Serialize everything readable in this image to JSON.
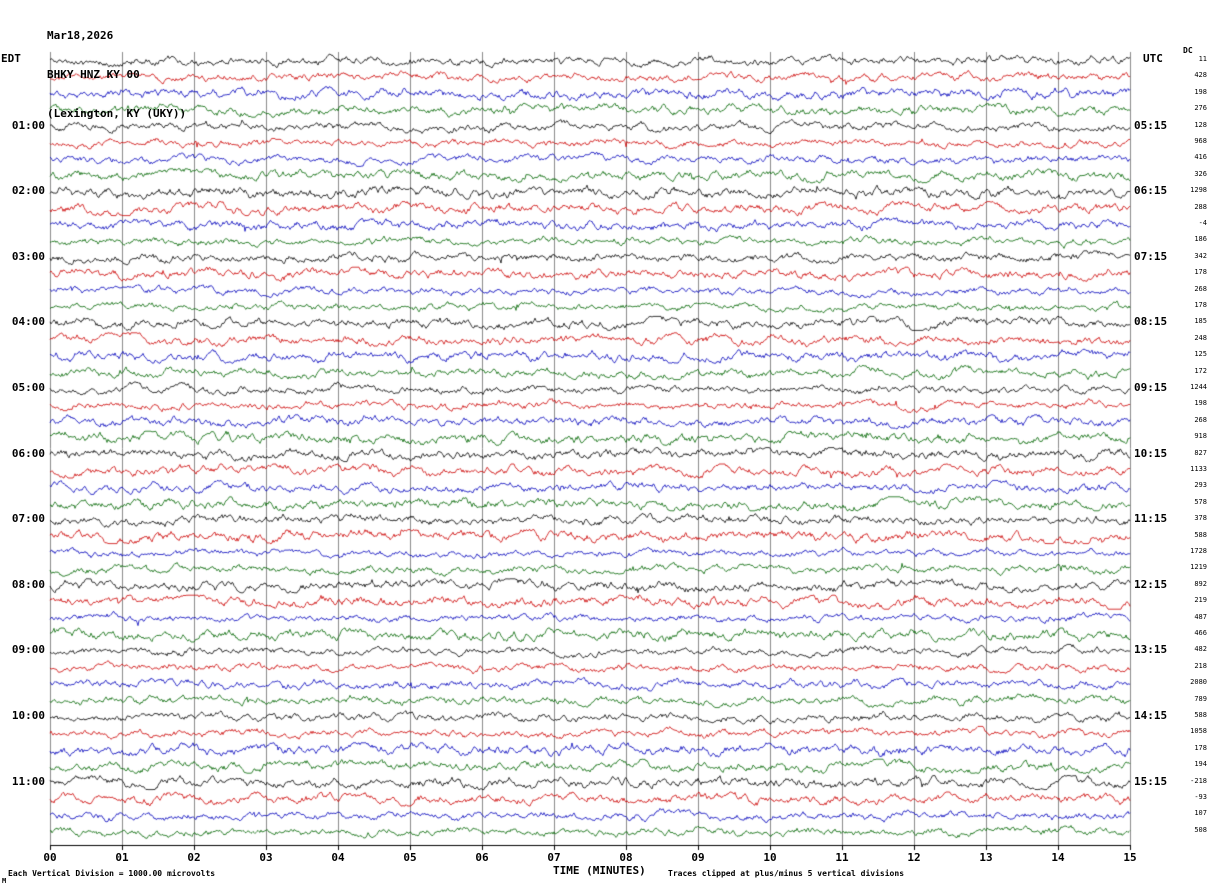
{
  "header": {
    "date": "Mar18,2026",
    "station": "BHKY HNZ KY 00",
    "location": "(Lexington, KY (UKY))"
  },
  "axes": {
    "left_label": "EDT",
    "right_label": "UTC",
    "dc_label": "DC",
    "x_title": "TIME (MINUTES)",
    "x_ticks": [
      "00",
      "01",
      "02",
      "03",
      "04",
      "05",
      "06",
      "07",
      "08",
      "09",
      "10",
      "11",
      "12",
      "13",
      "14",
      "15"
    ]
  },
  "footer": {
    "left": "Each Vertical Division = 1000.00 microvolts",
    "right": "Traces clipped at plus/minus 5 vertical divisions",
    "corner_mark": "M"
  },
  "chart_data": {
    "type": "line",
    "kind": "seismogram-helicorder",
    "title": "BHKY HNZ KY 00 (Lexington, KY (UKY)) Mar18,2026",
    "xlabel": "TIME (MINUTES)",
    "x_range_minutes": [
      0,
      15
    ],
    "minutes_per_row": 15,
    "vertical_division_microvolts": 1000.0,
    "clip_divisions": 5,
    "grid": true,
    "trace_colors": [
      "#000000",
      "#cc0000",
      "#0000bb",
      "#006600"
    ],
    "grid_color": "#8a8a8a",
    "rows": [
      {
        "color": "black",
        "edt": "",
        "utc": "",
        "dc": "11"
      },
      {
        "color": "red",
        "edt": "",
        "utc": "",
        "dc": "428"
      },
      {
        "color": "blue",
        "edt": "",
        "utc": "",
        "dc": "198"
      },
      {
        "color": "green",
        "edt": "",
        "utc": "",
        "dc": "276"
      },
      {
        "color": "black",
        "edt": "01:00",
        "utc": "05:15",
        "dc": "128"
      },
      {
        "color": "red",
        "edt": "",
        "utc": "",
        "dc": "968"
      },
      {
        "color": "blue",
        "edt": "",
        "utc": "",
        "dc": "416"
      },
      {
        "color": "green",
        "edt": "",
        "utc": "",
        "dc": "326"
      },
      {
        "color": "black",
        "edt": "02:00",
        "utc": "06:15",
        "dc": "1298"
      },
      {
        "color": "red",
        "edt": "",
        "utc": "",
        "dc": "288"
      },
      {
        "color": "blue",
        "edt": "",
        "utc": "",
        "dc": "-4"
      },
      {
        "color": "green",
        "edt": "",
        "utc": "",
        "dc": "186"
      },
      {
        "color": "black",
        "edt": "03:00",
        "utc": "07:15",
        "dc": "342"
      },
      {
        "color": "red",
        "edt": "",
        "utc": "",
        "dc": "178"
      },
      {
        "color": "blue",
        "edt": "",
        "utc": "",
        "dc": "268"
      },
      {
        "color": "green",
        "edt": "",
        "utc": "",
        "dc": "178"
      },
      {
        "color": "black",
        "edt": "04:00",
        "utc": "08:15",
        "dc": "185"
      },
      {
        "color": "red",
        "edt": "",
        "utc": "",
        "dc": "248"
      },
      {
        "color": "blue",
        "edt": "",
        "utc": "",
        "dc": "125"
      },
      {
        "color": "green",
        "edt": "",
        "utc": "",
        "dc": "172"
      },
      {
        "color": "black",
        "edt": "05:00",
        "utc": "09:15",
        "dc": "1244"
      },
      {
        "color": "red",
        "edt": "",
        "utc": "",
        "dc": "198"
      },
      {
        "color": "blue",
        "edt": "",
        "utc": "",
        "dc": "268"
      },
      {
        "color": "green",
        "edt": "",
        "utc": "",
        "dc": "918"
      },
      {
        "color": "black",
        "edt": "06:00",
        "utc": "10:15",
        "dc": "827"
      },
      {
        "color": "red",
        "edt": "",
        "utc": "",
        "dc": "1133"
      },
      {
        "color": "blue",
        "edt": "",
        "utc": "",
        "dc": "293"
      },
      {
        "color": "green",
        "edt": "",
        "utc": "",
        "dc": "578"
      },
      {
        "color": "black",
        "edt": "07:00",
        "utc": "11:15",
        "dc": "378"
      },
      {
        "color": "red",
        "edt": "",
        "utc": "",
        "dc": "588"
      },
      {
        "color": "blue",
        "edt": "",
        "utc": "",
        "dc": "1728"
      },
      {
        "color": "green",
        "edt": "",
        "utc": "",
        "dc": "1219"
      },
      {
        "color": "black",
        "edt": "08:00",
        "utc": "12:15",
        "dc": "892"
      },
      {
        "color": "red",
        "edt": "",
        "utc": "",
        "dc": "219"
      },
      {
        "color": "blue",
        "edt": "",
        "utc": "",
        "dc": "487"
      },
      {
        "color": "green",
        "edt": "",
        "utc": "",
        "dc": "466"
      },
      {
        "color": "black",
        "edt": "09:00",
        "utc": "13:15",
        "dc": "482"
      },
      {
        "color": "red",
        "edt": "",
        "utc": "",
        "dc": "218"
      },
      {
        "color": "blue",
        "edt": "",
        "utc": "",
        "dc": "2080"
      },
      {
        "color": "green",
        "edt": "",
        "utc": "",
        "dc": "789"
      },
      {
        "color": "black",
        "edt": "10:00",
        "utc": "14:15",
        "dc": "588"
      },
      {
        "color": "red",
        "edt": "",
        "utc": "",
        "dc": "1058"
      },
      {
        "color": "blue",
        "edt": "",
        "utc": "",
        "dc": "178"
      },
      {
        "color": "green",
        "edt": "",
        "utc": "",
        "dc": "194"
      },
      {
        "color": "black",
        "edt": "11:00",
        "utc": "15:15",
        "dc": "-218"
      },
      {
        "color": "red",
        "edt": "",
        "utc": "",
        "dc": "-93"
      },
      {
        "color": "blue",
        "edt": "",
        "utc": "",
        "dc": "107"
      },
      {
        "color": "green",
        "edt": "",
        "utc": "",
        "dc": "508"
      }
    ]
  }
}
